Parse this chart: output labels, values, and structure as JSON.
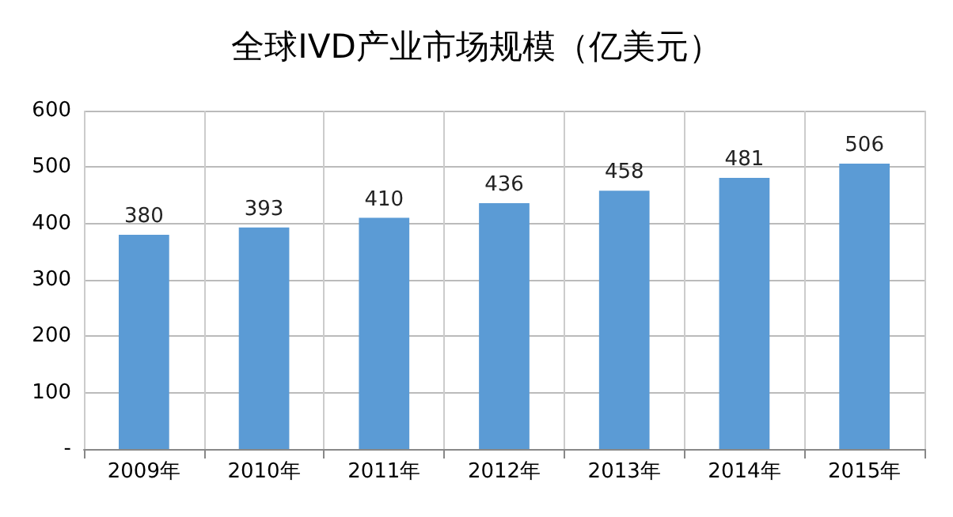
{
  "chart_data": {
    "type": "bar",
    "title": "全球IVD产业市场规模（亿美元）",
    "categories": [
      "2009年",
      "2010年",
      "2011年",
      "2012年",
      "2013年",
      "2014年",
      "2015年"
    ],
    "values": [
      380,
      393,
      410,
      436,
      458,
      481,
      506
    ],
    "color": "#5b9bd5",
    "ylim": [
      0,
      600
    ],
    "yticks": [
      {
        "value": 0,
        "label": "-"
      },
      100,
      200,
      300,
      400,
      500,
      600
    ],
    "grid": true,
    "data_labels": true
  }
}
